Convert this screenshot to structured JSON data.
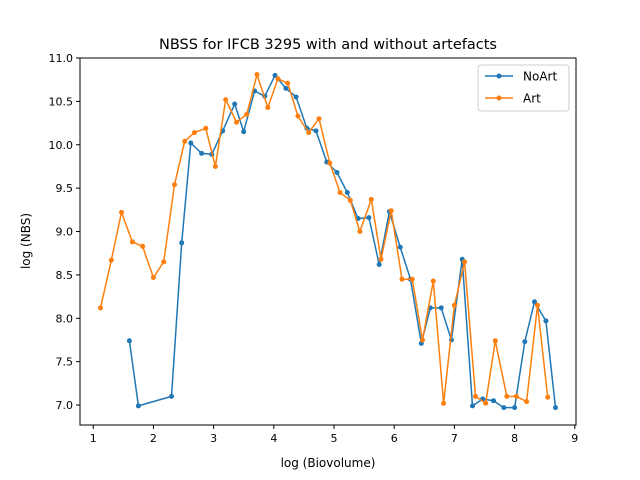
{
  "chart_data": {
    "type": "line",
    "title": "NBSS for IFCB 3295 with and without artefacts",
    "xlabel": "log (Biovolume)",
    "ylabel": "log (NBS)",
    "xlim": [
      0.78,
      9.02
    ],
    "ylim": [
      6.77,
      11.0
    ],
    "xticks": [
      1,
      2,
      3,
      4,
      5,
      6,
      7,
      8,
      9
    ],
    "yticks": [
      7.0,
      7.5,
      8.0,
      8.5,
      9.0,
      9.5,
      10.0,
      10.5,
      11.0
    ],
    "xtick_labels": [
      "1",
      "2",
      "3",
      "4",
      "5",
      "6",
      "7",
      "8",
      "9"
    ],
    "ytick_labels": [
      "7.0",
      "7.5",
      "8.0",
      "8.5",
      "9.0",
      "9.5",
      "10.0",
      "10.5",
      "11.0"
    ],
    "grid": false,
    "legend_position": "top-right",
    "series": [
      {
        "name": "NoArt",
        "color": "#1f77b4",
        "x": [
          1.6,
          1.75,
          2.3,
          2.47,
          2.62,
          2.8,
          2.97,
          3.15,
          3.35,
          3.5,
          3.68,
          3.85,
          4.02,
          4.2,
          4.37,
          4.55,
          4.7,
          4.88,
          5.05,
          5.22,
          5.4,
          5.58,
          5.75,
          5.92,
          6.1,
          6.27,
          6.45,
          6.6,
          6.78,
          6.95,
          7.13,
          7.3,
          7.47,
          7.65,
          7.82,
          8.0,
          8.17,
          8.33,
          8.52,
          8.68
        ],
        "y": [
          7.74,
          6.99,
          7.1,
          8.87,
          10.02,
          9.9,
          9.89,
          10.16,
          10.47,
          10.15,
          10.62,
          10.56,
          10.8,
          10.65,
          10.55,
          10.19,
          10.16,
          9.8,
          9.68,
          9.45,
          9.15,
          9.16,
          8.62,
          9.23,
          8.82,
          8.45,
          7.71,
          8.12,
          8.12,
          7.75,
          8.68,
          6.99,
          7.07,
          7.05,
          6.97,
          6.97,
          7.73,
          8.19,
          7.97,
          6.97
        ]
      },
      {
        "name": "Art",
        "color": "#ff7f0e",
        "x": [
          1.12,
          1.3,
          1.47,
          1.65,
          1.82,
          2.0,
          2.17,
          2.35,
          2.52,
          2.68,
          2.87,
          3.03,
          3.2,
          3.38,
          3.55,
          3.72,
          3.9,
          4.07,
          4.23,
          4.4,
          4.58,
          4.75,
          4.93,
          5.1,
          5.27,
          5.43,
          5.62,
          5.78,
          5.95,
          6.13,
          6.3,
          6.47,
          6.65,
          6.82,
          7.0,
          7.17,
          7.35,
          7.52,
          7.68,
          7.87,
          8.03,
          8.2,
          8.38,
          8.55
        ],
        "y": [
          8.12,
          8.67,
          9.22,
          8.88,
          8.83,
          8.47,
          8.65,
          9.54,
          10.04,
          10.14,
          10.19,
          9.75,
          10.52,
          10.26,
          10.35,
          10.81,
          10.43,
          10.76,
          10.71,
          10.33,
          10.14,
          10.3,
          9.79,
          9.45,
          9.36,
          9.0,
          9.37,
          8.68,
          9.24,
          8.45,
          8.45,
          7.75,
          8.43,
          7.02,
          8.15,
          8.65,
          7.1,
          7.02,
          7.74,
          7.1,
          7.1,
          7.04,
          8.15,
          7.09
        ]
      }
    ]
  }
}
